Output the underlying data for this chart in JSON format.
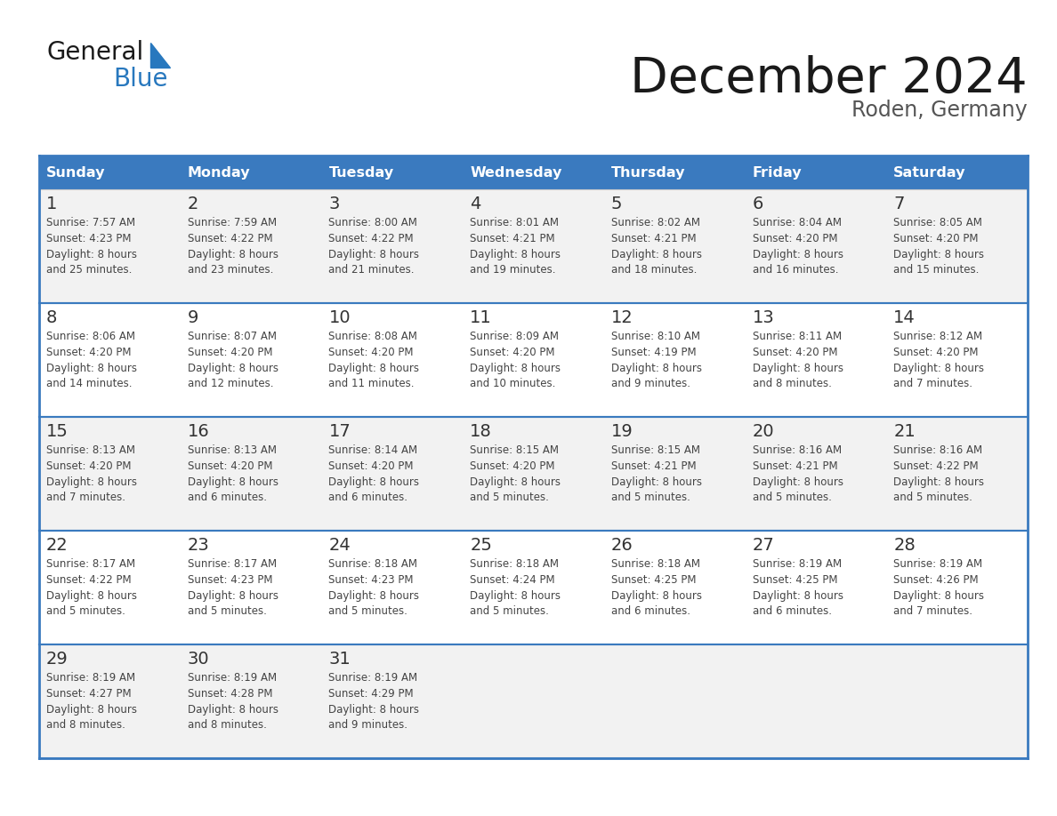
{
  "title": "December 2024",
  "subtitle": "Roden, Germany",
  "header_bg": "#3a7abf",
  "header_text": "#ffffff",
  "cell_bg_odd": "#f2f2f2",
  "cell_bg_even": "#ffffff",
  "border_color": "#3a7abf",
  "row_divider_color": "#3a7abf",
  "day_names": [
    "Sunday",
    "Monday",
    "Tuesday",
    "Wednesday",
    "Thursday",
    "Friday",
    "Saturday"
  ],
  "days": [
    {
      "day": 1,
      "col": 0,
      "row": 0,
      "sunrise": "7:57 AM",
      "sunset": "4:23 PM",
      "daylight": "8 hours and 25 minutes."
    },
    {
      "day": 2,
      "col": 1,
      "row": 0,
      "sunrise": "7:59 AM",
      "sunset": "4:22 PM",
      "daylight": "8 hours and 23 minutes."
    },
    {
      "day": 3,
      "col": 2,
      "row": 0,
      "sunrise": "8:00 AM",
      "sunset": "4:22 PM",
      "daylight": "8 hours and 21 minutes."
    },
    {
      "day": 4,
      "col": 3,
      "row": 0,
      "sunrise": "8:01 AM",
      "sunset": "4:21 PM",
      "daylight": "8 hours and 19 minutes."
    },
    {
      "day": 5,
      "col": 4,
      "row": 0,
      "sunrise": "8:02 AM",
      "sunset": "4:21 PM",
      "daylight": "8 hours and 18 minutes."
    },
    {
      "day": 6,
      "col": 5,
      "row": 0,
      "sunrise": "8:04 AM",
      "sunset": "4:20 PM",
      "daylight": "8 hours and 16 minutes."
    },
    {
      "day": 7,
      "col": 6,
      "row": 0,
      "sunrise": "8:05 AM",
      "sunset": "4:20 PM",
      "daylight": "8 hours and 15 minutes."
    },
    {
      "day": 8,
      "col": 0,
      "row": 1,
      "sunrise": "8:06 AM",
      "sunset": "4:20 PM",
      "daylight": "8 hours and 14 minutes."
    },
    {
      "day": 9,
      "col": 1,
      "row": 1,
      "sunrise": "8:07 AM",
      "sunset": "4:20 PM",
      "daylight": "8 hours and 12 minutes."
    },
    {
      "day": 10,
      "col": 2,
      "row": 1,
      "sunrise": "8:08 AM",
      "sunset": "4:20 PM",
      "daylight": "8 hours and 11 minutes."
    },
    {
      "day": 11,
      "col": 3,
      "row": 1,
      "sunrise": "8:09 AM",
      "sunset": "4:20 PM",
      "daylight": "8 hours and 10 minutes."
    },
    {
      "day": 12,
      "col": 4,
      "row": 1,
      "sunrise": "8:10 AM",
      "sunset": "4:19 PM",
      "daylight": "8 hours and 9 minutes."
    },
    {
      "day": 13,
      "col": 5,
      "row": 1,
      "sunrise": "8:11 AM",
      "sunset": "4:20 PM",
      "daylight": "8 hours and 8 minutes."
    },
    {
      "day": 14,
      "col": 6,
      "row": 1,
      "sunrise": "8:12 AM",
      "sunset": "4:20 PM",
      "daylight": "8 hours and 7 minutes."
    },
    {
      "day": 15,
      "col": 0,
      "row": 2,
      "sunrise": "8:13 AM",
      "sunset": "4:20 PM",
      "daylight": "8 hours and 7 minutes."
    },
    {
      "day": 16,
      "col": 1,
      "row": 2,
      "sunrise": "8:13 AM",
      "sunset": "4:20 PM",
      "daylight": "8 hours and 6 minutes."
    },
    {
      "day": 17,
      "col": 2,
      "row": 2,
      "sunrise": "8:14 AM",
      "sunset": "4:20 PM",
      "daylight": "8 hours and 6 minutes."
    },
    {
      "day": 18,
      "col": 3,
      "row": 2,
      "sunrise": "8:15 AM",
      "sunset": "4:20 PM",
      "daylight": "8 hours and 5 minutes."
    },
    {
      "day": 19,
      "col": 4,
      "row": 2,
      "sunrise": "8:15 AM",
      "sunset": "4:21 PM",
      "daylight": "8 hours and 5 minutes."
    },
    {
      "day": 20,
      "col": 5,
      "row": 2,
      "sunrise": "8:16 AM",
      "sunset": "4:21 PM",
      "daylight": "8 hours and 5 minutes."
    },
    {
      "day": 21,
      "col": 6,
      "row": 2,
      "sunrise": "8:16 AM",
      "sunset": "4:22 PM",
      "daylight": "8 hours and 5 minutes."
    },
    {
      "day": 22,
      "col": 0,
      "row": 3,
      "sunrise": "8:17 AM",
      "sunset": "4:22 PM",
      "daylight": "8 hours and 5 minutes."
    },
    {
      "day": 23,
      "col": 1,
      "row": 3,
      "sunrise": "8:17 AM",
      "sunset": "4:23 PM",
      "daylight": "8 hours and 5 minutes."
    },
    {
      "day": 24,
      "col": 2,
      "row": 3,
      "sunrise": "8:18 AM",
      "sunset": "4:23 PM",
      "daylight": "8 hours and 5 minutes."
    },
    {
      "day": 25,
      "col": 3,
      "row": 3,
      "sunrise": "8:18 AM",
      "sunset": "4:24 PM",
      "daylight": "8 hours and 5 minutes."
    },
    {
      "day": 26,
      "col": 4,
      "row": 3,
      "sunrise": "8:18 AM",
      "sunset": "4:25 PM",
      "daylight": "8 hours and 6 minutes."
    },
    {
      "day": 27,
      "col": 5,
      "row": 3,
      "sunrise": "8:19 AM",
      "sunset": "4:25 PM",
      "daylight": "8 hours and 6 minutes."
    },
    {
      "day": 28,
      "col": 6,
      "row": 3,
      "sunrise": "8:19 AM",
      "sunset": "4:26 PM",
      "daylight": "8 hours and 7 minutes."
    },
    {
      "day": 29,
      "col": 0,
      "row": 4,
      "sunrise": "8:19 AM",
      "sunset": "4:27 PM",
      "daylight": "8 hours and 8 minutes."
    },
    {
      "day": 30,
      "col": 1,
      "row": 4,
      "sunrise": "8:19 AM",
      "sunset": "4:28 PM",
      "daylight": "8 hours and 8 minutes."
    },
    {
      "day": 31,
      "col": 2,
      "row": 4,
      "sunrise": "8:19 AM",
      "sunset": "4:29 PM",
      "daylight": "8 hours and 9 minutes."
    }
  ],
  "logo_general_color": "#1a1a1a",
  "logo_blue_color": "#2878be",
  "logo_triangle_color": "#2878be",
  "title_color": "#1a1a1a",
  "subtitle_color": "#555555",
  "day_number_color": "#333333",
  "cell_text_color": "#444444"
}
